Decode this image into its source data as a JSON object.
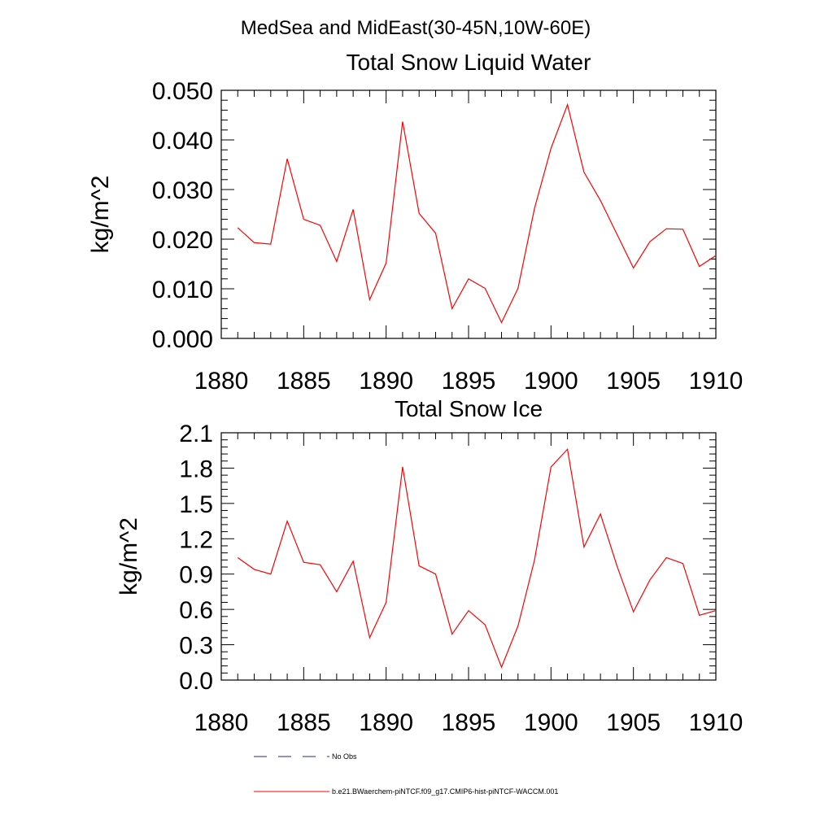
{
  "figure": {
    "main_title": "MedSea and MidEast(30-45N,10W-60E)"
  },
  "legend": [
    {
      "label": "No Obs",
      "color": "#1f2a8a",
      "dash": "dashed"
    },
    {
      "label": "b.e21.BWaerchem-piNTCF.f09_g17.CMIP6-hist-piNTCF-WACCM.001",
      "color": "#ff0000",
      "dash": "solid"
    }
  ],
  "chart_data": [
    {
      "type": "line",
      "title": "Total Snow Liquid Water",
      "xlabel": "",
      "ylabel": "kg/m^2",
      "xlim": [
        1880,
        1910
      ],
      "ylim": [
        0,
        0.05
      ],
      "x_ticks": [
        1880,
        1885,
        1890,
        1895,
        1900,
        1905,
        1910
      ],
      "y_ticks": [
        0,
        0.01,
        0.02,
        0.03,
        0.04,
        0.05
      ],
      "y_tick_labels": [
        "0.000",
        "0.010",
        "0.020",
        "0.030",
        "0.040",
        "0.050"
      ],
      "grid": false,
      "series": [
        {
          "color": "#ff0000",
          "x": [
            1881,
            1882,
            1883,
            1884,
            1885,
            1886,
            1887,
            1888,
            1889,
            1890,
            1891,
            1892,
            1893,
            1894,
            1895,
            1896,
            1897,
            1898,
            1899,
            1900,
            1901,
            1902,
            1903,
            1904,
            1905,
            1906,
            1907,
            1908,
            1909,
            1910
          ],
          "values": [
            0.0223,
            0.0193,
            0.019,
            0.0362,
            0.024,
            0.0228,
            0.0155,
            0.026,
            0.0078,
            0.0152,
            0.0437,
            0.0252,
            0.0212,
            0.006,
            0.012,
            0.0101,
            0.0032,
            0.0101,
            0.0262,
            0.0383,
            0.0471,
            0.0335,
            0.0278,
            0.021,
            0.0142,
            0.0195,
            0.0221,
            0.022,
            0.0145,
            0.0167
          ]
        }
      ]
    },
    {
      "type": "line",
      "title": "Total Snow Ice",
      "xlabel": "",
      "ylabel": "kg/m^2",
      "xlim": [
        1880,
        1910
      ],
      "ylim": [
        0,
        2.1
      ],
      "x_ticks": [
        1880,
        1885,
        1890,
        1895,
        1900,
        1905,
        1910
      ],
      "y_ticks": [
        0,
        0.3,
        0.6,
        0.9,
        1.2,
        1.5,
        1.8,
        2.1
      ],
      "y_tick_labels": [
        "0.0",
        "0.3",
        "0.6",
        "0.9",
        "1.2",
        "1.5",
        "1.8",
        "2.1"
      ],
      "grid": false,
      "series": [
        {
          "color": "#ff0000",
          "x": [
            1881,
            1882,
            1883,
            1884,
            1885,
            1886,
            1887,
            1888,
            1889,
            1890,
            1891,
            1892,
            1893,
            1894,
            1895,
            1896,
            1897,
            1898,
            1899,
            1900,
            1901,
            1902,
            1903,
            1904,
            1905,
            1906,
            1907,
            1908,
            1909,
            1910
          ],
          "values": [
            1.04,
            0.94,
            0.9,
            1.35,
            1.0,
            0.98,
            0.75,
            1.01,
            0.36,
            0.66,
            1.81,
            0.97,
            0.9,
            0.39,
            0.59,
            0.47,
            0.11,
            0.46,
            1.02,
            1.81,
            1.96,
            1.13,
            1.41,
            0.97,
            0.58,
            0.85,
            1.04,
            0.99,
            0.55,
            0.59
          ]
        }
      ]
    }
  ]
}
